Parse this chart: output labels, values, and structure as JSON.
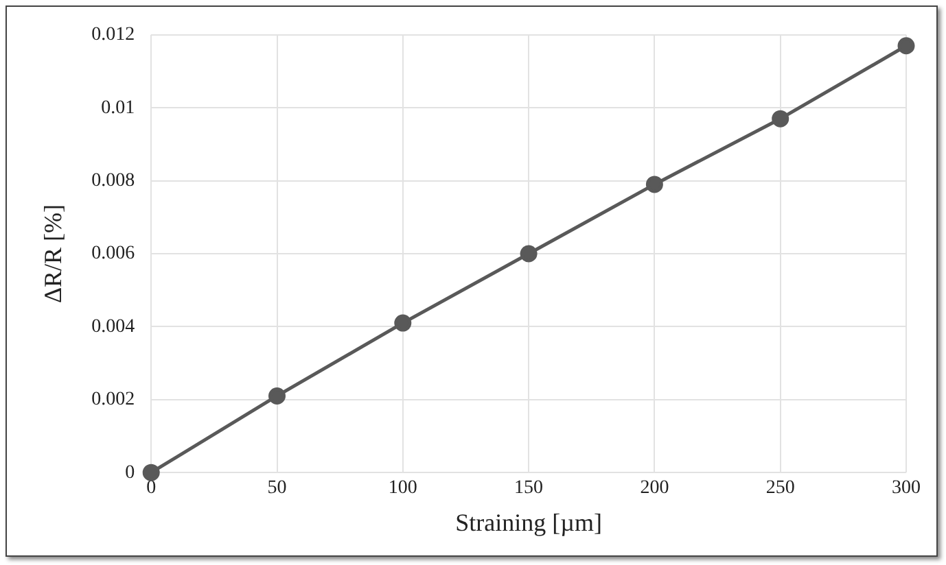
{
  "chart_data": {
    "type": "line",
    "xlabel": "Straining [µm]",
    "ylabel": "ΔR/R [%]",
    "x": [
      0,
      50,
      100,
      150,
      200,
      250,
      300
    ],
    "series": [
      {
        "color": "#595959",
        "values": [
          0,
          0.0021,
          0.0041,
          0.006,
          0.0079,
          0.0097,
          0.0117
        ]
      }
    ],
    "xlim": [
      0,
      300
    ],
    "xticks": [
      0,
      50,
      100,
      150,
      200,
      250,
      300
    ],
    "ylim": [
      0,
      0.012
    ],
    "yticks": [
      0,
      0.002,
      0.004,
      0.006,
      0.008,
      0.01,
      0.012
    ],
    "grid": true,
    "marker": "circle",
    "line_style": "solid",
    "legend": false
  }
}
